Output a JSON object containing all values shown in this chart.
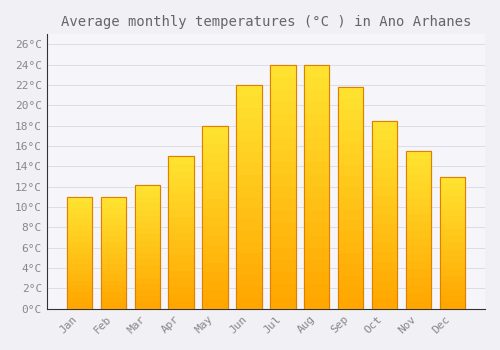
{
  "title": "Average monthly temperatures (°C ) in Ano Arhanes",
  "months": [
    "Jan",
    "Feb",
    "Mar",
    "Apr",
    "May",
    "Jun",
    "Jul",
    "Aug",
    "Sep",
    "Oct",
    "Nov",
    "Dec"
  ],
  "temperatures": [
    11,
    11,
    12.2,
    15,
    18,
    22,
    24,
    24,
    21.8,
    18.5,
    15.5,
    13
  ],
  "bar_color_top": "#FFB300",
  "bar_color_bottom": "#FF8C00",
  "bar_face_color": "#FFC04C",
  "bar_edge_color": "#E08000",
  "background_color": "#F0F0F5",
  "plot_bg_color": "#F5F5FA",
  "grid_color": "#DDDDE8",
  "text_color": "#888888",
  "title_color": "#666666",
  "spine_color": "#333333",
  "ylim": [
    0,
    27
  ],
  "yticks": [
    0,
    2,
    4,
    6,
    8,
    10,
    12,
    14,
    16,
    18,
    20,
    22,
    24,
    26
  ],
  "title_fontsize": 10,
  "tick_fontsize": 8,
  "figsize": [
    5.0,
    3.5
  ],
  "dpi": 100
}
